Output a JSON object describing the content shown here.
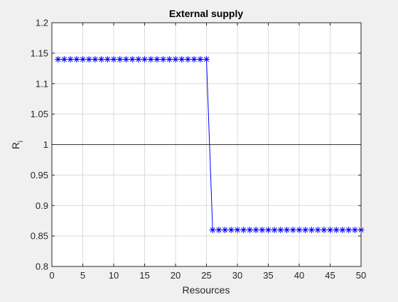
{
  "chart_data": {
    "type": "line",
    "title": "External supply",
    "xlabel": "Resources",
    "ylabel_main": "R",
    "ylabel_sub": "i",
    "xlim": [
      0,
      50
    ],
    "ylim": [
      0.8,
      1.2
    ],
    "xticks": [
      "0",
      "5",
      "10",
      "15",
      "20",
      "25",
      "30",
      "35",
      "40",
      "45",
      "50"
    ],
    "yticks": [
      "0.8",
      "0.85",
      "0.9",
      "0.95",
      "1",
      "1.05",
      "1.1",
      "1.15",
      "1.2"
    ],
    "grid": true,
    "reference_line": 1,
    "series": [
      {
        "marker": "asterisk",
        "color": "#0000ff",
        "x": [
          1,
          2,
          3,
          4,
          5,
          6,
          7,
          8,
          9,
          10,
          11,
          12,
          13,
          14,
          15,
          16,
          17,
          18,
          19,
          20,
          21,
          22,
          23,
          24,
          25,
          26,
          27,
          28,
          29,
          30,
          31,
          32,
          33,
          34,
          35,
          36,
          37,
          38,
          39,
          40,
          41,
          42,
          43,
          44,
          45,
          46,
          47,
          48,
          49,
          50
        ],
        "y": [
          1.14,
          1.14,
          1.14,
          1.14,
          1.14,
          1.14,
          1.14,
          1.14,
          1.14,
          1.14,
          1.14,
          1.14,
          1.14,
          1.14,
          1.14,
          1.14,
          1.14,
          1.14,
          1.14,
          1.14,
          1.14,
          1.14,
          1.14,
          1.14,
          1.14,
          0.86,
          0.86,
          0.86,
          0.86,
          0.86,
          0.86,
          0.86,
          0.86,
          0.86,
          0.86,
          0.86,
          0.86,
          0.86,
          0.86,
          0.86,
          0.86,
          0.86,
          0.86,
          0.86,
          0.86,
          0.86,
          0.86,
          0.86,
          0.86,
          0.86
        ]
      }
    ]
  }
}
